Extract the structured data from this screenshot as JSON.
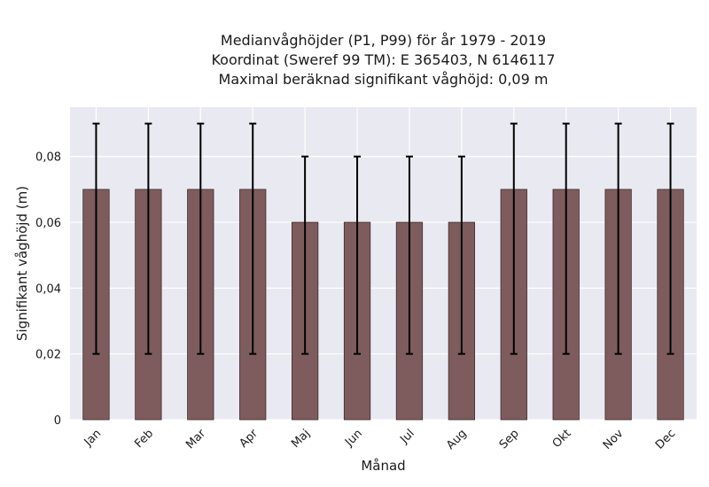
{
  "chart_data": {
    "type": "bar",
    "title_lines": [
      "Medianvåghöjder (P1, P99) för år 1979 - 2019",
      "Koordinat (Sweref 99 TM): E 365403, N 6146117",
      "Maximal beräknad signifikant våghöjd: 0,09 m"
    ],
    "xlabel": "Månad",
    "ylabel": "Signifikant våghöjd (m)",
    "categories": [
      "Jan",
      "Feb",
      "Mar",
      "Apr",
      "Maj",
      "Jun",
      "Jul",
      "Aug",
      "Sep",
      "Okt",
      "Nov",
      "Dec"
    ],
    "values": [
      0.07,
      0.07,
      0.07,
      0.07,
      0.06,
      0.06,
      0.06,
      0.06,
      0.07,
      0.07,
      0.07,
      0.07
    ],
    "error_low": [
      0.02,
      0.02,
      0.02,
      0.02,
      0.02,
      0.02,
      0.02,
      0.02,
      0.02,
      0.02,
      0.02,
      0.02
    ],
    "error_high": [
      0.09,
      0.09,
      0.09,
      0.09,
      0.08,
      0.08,
      0.08,
      0.08,
      0.09,
      0.09,
      0.09,
      0.09
    ],
    "ylim": [
      0,
      0.095
    ],
    "yticks": [
      0,
      0.02,
      0.04,
      0.06,
      0.08
    ],
    "ytick_labels": [
      "0",
      "0,02",
      "0,04",
      "0,06",
      "0,08"
    ],
    "grid": true,
    "colors": {
      "bar": "#7e5c5e",
      "bar_edge": "#3d2b2c",
      "error": "#000000",
      "plot_bg": "#e9e9f1",
      "grid": "#ffffff"
    }
  }
}
